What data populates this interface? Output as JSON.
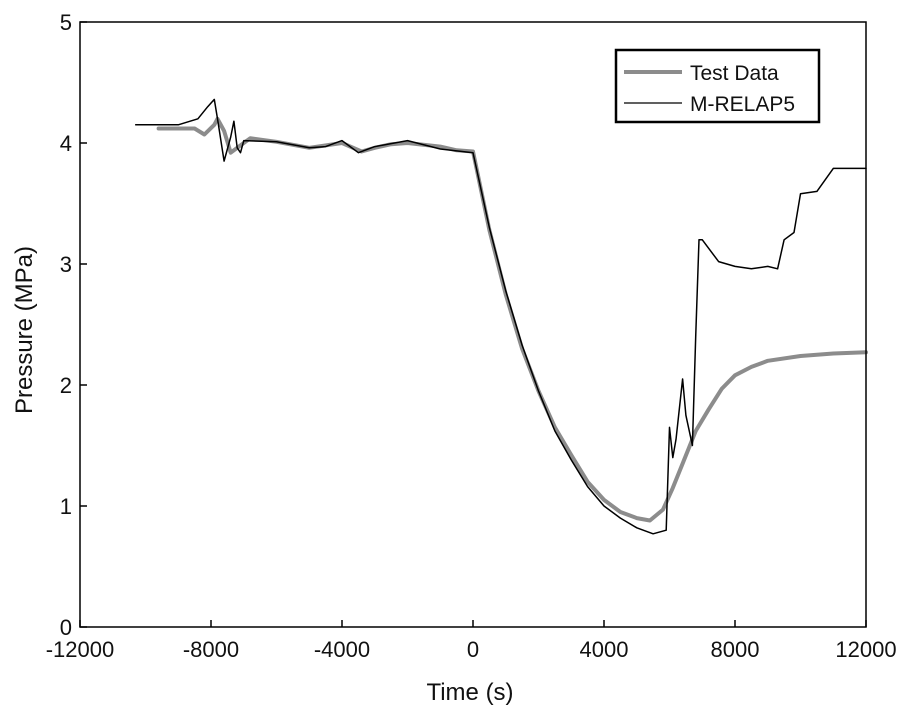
{
  "chart_data": {
    "type": "line",
    "xlabel": "Time (s)",
    "ylabel": "Pressure (MPa)",
    "xlim": [
      -12000,
      12000
    ],
    "ylim": [
      0,
      5
    ],
    "xticks": [
      -12000,
      -8000,
      -4000,
      0,
      4000,
      8000,
      12000
    ],
    "yticks": [
      0,
      1,
      2,
      3,
      4,
      5
    ],
    "grid": false,
    "legend_position": "top-right",
    "series": [
      {
        "name": "Test Data",
        "color": "#8c8c8c",
        "x": [
          -9600,
          -8500,
          -8200,
          -7900,
          -7800,
          -7600,
          -7400,
          -7100,
          -6800,
          -6000,
          -5000,
          -4000,
          -3400,
          -3000,
          -2500,
          -2000,
          -1000,
          -500,
          0,
          500,
          1000,
          1500,
          2000,
          2500,
          3000,
          3500,
          4000,
          4500,
          5000,
          5400,
          5800,
          6100,
          6400,
          6800,
          7200,
          7600,
          8000,
          8500,
          9000,
          10000,
          11000,
          12000
        ],
        "y": [
          4.12,
          4.12,
          4.07,
          4.15,
          4.2,
          4.1,
          3.92,
          3.98,
          4.04,
          4.01,
          3.96,
          4.0,
          3.93,
          3.96,
          3.99,
          4.0,
          3.97,
          3.94,
          3.93,
          3.28,
          2.75,
          2.3,
          1.95,
          1.65,
          1.42,
          1.2,
          1.05,
          0.95,
          0.9,
          0.88,
          0.97,
          1.15,
          1.35,
          1.62,
          1.8,
          1.97,
          2.08,
          2.15,
          2.2,
          2.24,
          2.26,
          2.27
        ]
      },
      {
        "name": "M-RELAP5",
        "color": "#000000",
        "x": [
          -10300,
          -10000,
          -9000,
          -8400,
          -8100,
          -7900,
          -7800,
          -7600,
          -7500,
          -7400,
          -7300,
          -7200,
          -7100,
          -7000,
          -6000,
          -5000,
          -4500,
          -4000,
          -3500,
          -3000,
          -2000,
          -1000,
          0,
          500,
          1000,
          1500,
          2000,
          2500,
          3000,
          3500,
          4000,
          4500,
          5000,
          5500,
          5900,
          6000,
          6100,
          6200,
          6400,
          6500,
          6700,
          6800,
          6900,
          7000,
          7500,
          8000,
          8500,
          9000,
          9300,
          9500,
          9800,
          10000,
          10500,
          11000,
          12000
        ],
        "y": [
          4.15,
          4.15,
          4.15,
          4.2,
          4.3,
          4.36,
          4.2,
          3.85,
          3.95,
          4.05,
          4.18,
          3.96,
          3.92,
          4.02,
          4.01,
          3.96,
          3.97,
          4.02,
          3.92,
          3.97,
          4.02,
          3.95,
          3.92,
          3.3,
          2.78,
          2.33,
          1.95,
          1.62,
          1.38,
          1.16,
          1.0,
          0.9,
          0.82,
          0.77,
          0.8,
          1.65,
          1.4,
          1.55,
          2.05,
          1.75,
          1.5,
          2.4,
          3.2,
          3.2,
          3.02,
          2.98,
          2.96,
          2.98,
          2.96,
          3.2,
          3.26,
          3.58,
          3.6,
          3.79,
          3.79
        ]
      }
    ]
  }
}
